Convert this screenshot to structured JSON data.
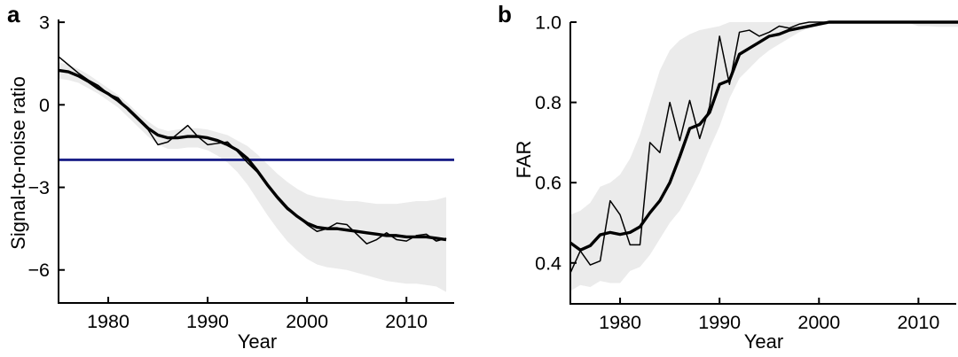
{
  "figure": {
    "background": "#ffffff",
    "panels": [
      {
        "id": "a",
        "letter": "a",
        "ylabel": "Signal-to-noise ratio",
        "xlabel": "Year"
      },
      {
        "id": "b",
        "letter": "b",
        "ylabel": "FAR",
        "xlabel": "Year"
      }
    ]
  },
  "colors": {
    "line": "#000000",
    "threshold": "#1b2088",
    "band": "#ebebeb",
    "text": "#000000",
    "axis": "#000000"
  },
  "chart_data": [
    {
      "panel": "a",
      "type": "line",
      "title": "",
      "xlabel": "Year",
      "ylabel": "Signal-to-noise ratio",
      "grid": false,
      "legend": "none",
      "xlim": [
        1975,
        2014.8
      ],
      "ylim": [
        -7.2,
        3.1
      ],
      "xticks": [
        {
          "v": 1980,
          "label": "1980"
        },
        {
          "v": 1990,
          "label": "1990"
        },
        {
          "v": 2000,
          "label": "2000"
        },
        {
          "v": 2010,
          "label": "2010"
        }
      ],
      "yticks": [
        {
          "v": 3,
          "label": "3"
        },
        {
          "v": 0,
          "label": "0"
        },
        {
          "v": -3,
          "label": "−3"
        },
        {
          "v": -6,
          "label": "−6"
        }
      ],
      "x": [
        1975,
        1976,
        1977,
        1978,
        1979,
        1980,
        1981,
        1982,
        1983,
        1984,
        1985,
        1986,
        1987,
        1988,
        1989,
        1990,
        1991,
        1992,
        1993,
        1994,
        1995,
        1996,
        1997,
        1998,
        1999,
        2000,
        2001,
        2002,
        2003,
        2004,
        2005,
        2006,
        2007,
        2008,
        2009,
        2010,
        2011,
        2012,
        2013,
        2014
      ],
      "series": [
        {
          "name": "annual-line",
          "style": "thin",
          "values": [
            1.75,
            1.45,
            1.15,
            0.9,
            0.7,
            0.4,
            0.25,
            -0.2,
            -0.55,
            -0.9,
            -1.45,
            -1.35,
            -1.05,
            -0.75,
            -1.15,
            -1.45,
            -1.4,
            -1.35,
            -1.7,
            -2.1,
            -2.45,
            -2.95,
            -3.4,
            -3.8,
            -4.05,
            -4.35,
            -4.6,
            -4.5,
            -4.3,
            -4.35,
            -4.7,
            -5.05,
            -4.9,
            -4.65,
            -4.9,
            -4.95,
            -4.75,
            -4.7,
            -4.95,
            -4.85
          ]
        },
        {
          "name": "smoothed-line",
          "style": "thick",
          "values": [
            1.25,
            1.2,
            1.05,
            0.85,
            0.6,
            0.4,
            0.15,
            -0.15,
            -0.5,
            -0.85,
            -1.1,
            -1.2,
            -1.2,
            -1.15,
            -1.15,
            -1.2,
            -1.3,
            -1.45,
            -1.65,
            -1.95,
            -2.4,
            -2.9,
            -3.35,
            -3.75,
            -4.05,
            -4.3,
            -4.45,
            -4.5,
            -4.5,
            -4.55,
            -4.6,
            -4.65,
            -4.7,
            -4.75,
            -4.75,
            -4.8,
            -4.8,
            -4.8,
            -4.85,
            -4.9
          ]
        },
        {
          "name": "detection-threshold-line",
          "style": "hline",
          "value": -2
        }
      ],
      "band": {
        "name": "uncertainty-band",
        "lower": [
          0.95,
          0.9,
          0.8,
          0.6,
          0.4,
          0.15,
          -0.1,
          -0.45,
          -0.8,
          -1.15,
          -1.45,
          -1.6,
          -1.6,
          -1.55,
          -1.55,
          -1.65,
          -1.85,
          -2.1,
          -2.45,
          -2.9,
          -3.45,
          -4.0,
          -4.5,
          -4.95,
          -5.3,
          -5.6,
          -5.8,
          -5.9,
          -5.95,
          -6.0,
          -6.1,
          -6.2,
          -6.3,
          -6.4,
          -6.45,
          -6.5,
          -6.5,
          -6.55,
          -6.6,
          -6.8
        ],
        "upper": [
          1.55,
          1.45,
          1.3,
          1.1,
          0.85,
          0.6,
          0.35,
          0.05,
          -0.3,
          -0.6,
          -0.85,
          -0.95,
          -0.9,
          -0.85,
          -0.85,
          -0.9,
          -1.0,
          -1.1,
          -1.3,
          -1.5,
          -1.8,
          -2.15,
          -2.5,
          -2.8,
          -3.05,
          -3.25,
          -3.35,
          -3.4,
          -3.45,
          -3.5,
          -3.5,
          -3.55,
          -3.6,
          -3.6,
          -3.6,
          -3.55,
          -3.5,
          -3.5,
          -3.45,
          -3.35
        ]
      }
    },
    {
      "panel": "b",
      "type": "line",
      "title": "",
      "xlabel": "Year",
      "ylabel": "FAR",
      "grid": false,
      "legend": "none",
      "xlim": [
        1975,
        2013.8
      ],
      "ylim": [
        0.298,
        1.0
      ],
      "xticks": [
        {
          "v": 1980,
          "label": "1980"
        },
        {
          "v": 1990,
          "label": "1990"
        },
        {
          "v": 2000,
          "label": "2000"
        },
        {
          "v": 2010,
          "label": "2010"
        }
      ],
      "yticks": [
        {
          "v": 1.0,
          "label": "1.0"
        },
        {
          "v": 0.8,
          "label": "0.8"
        },
        {
          "v": 0.6,
          "label": "0.6"
        },
        {
          "v": 0.4,
          "label": "0.4"
        }
      ],
      "x": [
        1975,
        1976,
        1977,
        1978,
        1979,
        1980,
        1981,
        1982,
        1983,
        1984,
        1985,
        1986,
        1987,
        1988,
        1989,
        1990,
        1991,
        1992,
        1993,
        1994,
        1995,
        1996,
        1997,
        1998,
        1999,
        2000,
        2001,
        2002,
        2003,
        2004,
        2005,
        2006,
        2007,
        2008,
        2009,
        2010,
        2011,
        2012,
        2013,
        2014
      ],
      "series": [
        {
          "name": "annual-line",
          "style": "thin",
          "values": [
            0.375,
            0.43,
            0.395,
            0.405,
            0.555,
            0.52,
            0.445,
            0.445,
            0.7,
            0.675,
            0.8,
            0.705,
            0.805,
            0.71,
            0.79,
            0.965,
            0.845,
            0.975,
            0.98,
            0.965,
            0.975,
            0.99,
            0.985,
            0.995,
            1.0,
            1.0,
            1.0,
            1.0,
            1.0,
            1.0,
            1.0,
            1.0,
            1.0,
            1.0,
            1.0,
            1.0,
            1.0,
            1.0,
            1.0,
            1.0
          ]
        },
        {
          "name": "smoothed-line",
          "style": "thick",
          "values": [
            0.45,
            0.432,
            0.443,
            0.47,
            0.476,
            0.471,
            0.476,
            0.49,
            0.525,
            0.555,
            0.6,
            0.665,
            0.735,
            0.745,
            0.775,
            0.845,
            0.855,
            0.92,
            0.935,
            0.95,
            0.965,
            0.97,
            0.98,
            0.985,
            0.99,
            0.995,
            1.0,
            1.0,
            1.0,
            1.0,
            1.0,
            1.0,
            1.0,
            1.0,
            1.0,
            1.0,
            1.0,
            1.0,
            1.0,
            1.0
          ]
        }
      ],
      "band": {
        "name": "uncertainty-band",
        "lower": [
          0.33,
          0.345,
          0.34,
          0.355,
          0.35,
          0.35,
          0.38,
          0.39,
          0.42,
          0.46,
          0.5,
          0.53,
          0.575,
          0.625,
          0.685,
          0.74,
          0.81,
          0.86,
          0.885,
          0.91,
          0.93,
          0.945,
          0.96,
          0.975,
          0.985,
          0.99,
          0.995,
          0.998,
          0.998,
          0.998,
          0.998,
          0.998,
          0.998,
          0.998,
          0.998,
          0.99,
          0.99,
          0.988,
          0.988,
          0.988
        ],
        "upper": [
          0.52,
          0.53,
          0.55,
          0.59,
          0.6,
          0.62,
          0.66,
          0.72,
          0.8,
          0.88,
          0.93,
          0.955,
          0.97,
          0.98,
          0.985,
          0.99,
          1.0,
          1.0,
          1.0,
          1.0,
          1.0,
          1.0,
          1.0,
          1.0,
          1.0,
          1.0,
          1.0,
          1.0,
          1.0,
          1.0,
          1.0,
          1.0,
          1.0,
          1.0,
          1.0,
          1.0,
          1.0,
          1.0,
          1.0,
          1.0
        ]
      }
    }
  ]
}
